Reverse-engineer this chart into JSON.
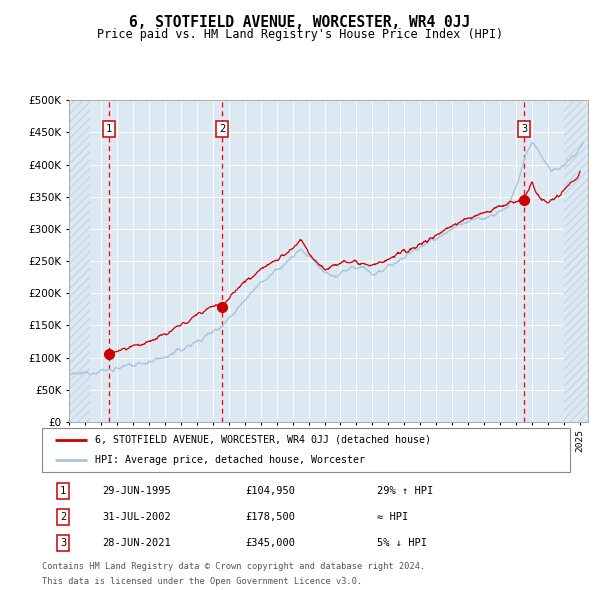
{
  "title": "6, STOTFIELD AVENUE, WORCESTER, WR4 0JJ",
  "subtitle": "Price paid vs. HM Land Registry's House Price Index (HPI)",
  "sale_prices": [
    104950,
    178500,
    345000
  ],
  "sale_years": [
    1995.498,
    2002.581,
    2021.496
  ],
  "sale_labels": [
    "1",
    "2",
    "3"
  ],
  "legend_line1": "6, STOTFIELD AVENUE, WORCESTER, WR4 0JJ (detached house)",
  "legend_line2": "HPI: Average price, detached house, Worcester",
  "table_rows": [
    [
      "1",
      "29-JUN-1995",
      "£104,950",
      "29% ↑ HPI"
    ],
    [
      "2",
      "31-JUL-2002",
      "£178,500",
      "≈ HPI"
    ],
    [
      "3",
      "28-JUN-2021",
      "£345,000",
      "5% ↓ HPI"
    ]
  ],
  "footer_line1": "Contains HM Land Registry data © Crown copyright and database right 2024.",
  "footer_line2": "This data is licensed under the Open Government Licence v3.0.",
  "hpi_color": "#aac4de",
  "price_color": "#cc0000",
  "bg_color": "#dce9f2",
  "grid_color": "#ffffff",
  "hatch_color": "#c5d8e8",
  "ylim": [
    0,
    500000
  ],
  "xlim_start": 1993.0,
  "xlim_end": 2025.5,
  "hpi_anchors": [
    [
      1993.0,
      72000
    ],
    [
      1994.0,
      76000
    ],
    [
      1995.0,
      79000
    ],
    [
      1995.5,
      81000
    ],
    [
      1997.0,
      88000
    ],
    [
      1999.0,
      100000
    ],
    [
      2000.5,
      118000
    ],
    [
      2001.5,
      132000
    ],
    [
      2002.6,
      150000
    ],
    [
      2003.5,
      175000
    ],
    [
      2004.5,
      205000
    ],
    [
      2005.5,
      225000
    ],
    [
      2006.5,
      245000
    ],
    [
      2007.5,
      268000
    ],
    [
      2008.2,
      255000
    ],
    [
      2008.8,
      235000
    ],
    [
      2009.5,
      225000
    ],
    [
      2010.5,
      238000
    ],
    [
      2011.5,
      242000
    ],
    [
      2012.0,
      228000
    ],
    [
      2012.8,
      238000
    ],
    [
      2013.5,
      248000
    ],
    [
      2014.5,
      265000
    ],
    [
      2015.5,
      278000
    ],
    [
      2016.5,
      292000
    ],
    [
      2017.5,
      308000
    ],
    [
      2018.5,
      315000
    ],
    [
      2019.5,
      320000
    ],
    [
      2020.5,
      335000
    ],
    [
      2021.2,
      380000
    ],
    [
      2021.6,
      415000
    ],
    [
      2022.0,
      435000
    ],
    [
      2022.3,
      425000
    ],
    [
      2022.8,
      405000
    ],
    [
      2023.2,
      390000
    ],
    [
      2023.8,
      395000
    ],
    [
      2024.3,
      405000
    ],
    [
      2024.8,
      418000
    ],
    [
      2025.2,
      435000
    ]
  ],
  "price_anchors": [
    [
      1995.498,
      104950
    ],
    [
      1996.0,
      109000
    ],
    [
      1997.0,
      117000
    ],
    [
      1998.0,
      125000
    ],
    [
      1999.0,
      136000
    ],
    [
      2000.0,
      150000
    ],
    [
      2001.0,
      166000
    ],
    [
      2002.0,
      182000
    ],
    [
      2002.581,
      178500
    ],
    [
      2003.0,
      192000
    ],
    [
      2004.0,
      218000
    ],
    [
      2005.0,
      238000
    ],
    [
      2006.0,
      252000
    ],
    [
      2007.0,
      268000
    ],
    [
      2007.5,
      282000
    ],
    [
      2008.2,
      258000
    ],
    [
      2009.0,
      238000
    ],
    [
      2010.0,
      248000
    ],
    [
      2011.0,
      250000
    ],
    [
      2012.0,
      242000
    ],
    [
      2013.0,
      252000
    ],
    [
      2014.0,
      264000
    ],
    [
      2015.0,
      276000
    ],
    [
      2016.0,
      290000
    ],
    [
      2017.0,
      306000
    ],
    [
      2018.0,
      316000
    ],
    [
      2019.0,
      325000
    ],
    [
      2020.0,
      335000
    ],
    [
      2021.0,
      344000
    ],
    [
      2021.496,
      345000
    ],
    [
      2022.0,
      375000
    ],
    [
      2022.2,
      358000
    ],
    [
      2022.6,
      345000
    ],
    [
      2023.0,
      340000
    ],
    [
      2023.5,
      348000
    ],
    [
      2024.0,
      360000
    ],
    [
      2024.5,
      372000
    ],
    [
      2025.0,
      385000
    ]
  ]
}
